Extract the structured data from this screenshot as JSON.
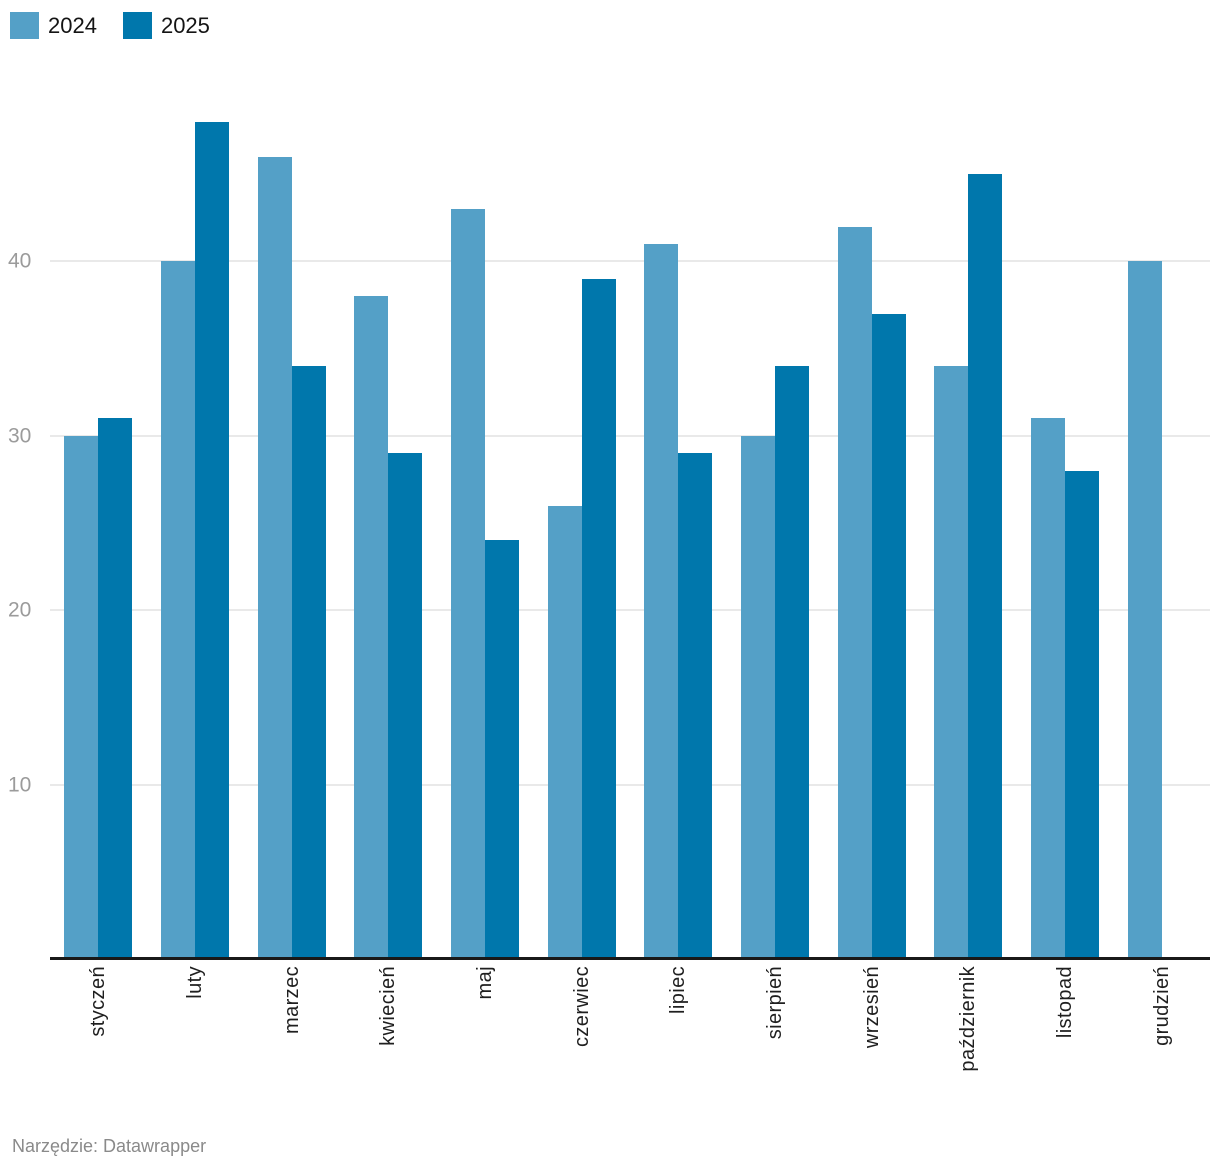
{
  "chart_data": {
    "type": "bar",
    "title": "",
    "xlabel": "",
    "ylabel": "",
    "categories": [
      "styczeń",
      "luty",
      "marzec",
      "kwiecień",
      "maj",
      "czerwiec",
      "lipiec",
      "sierpień",
      "wrzesień",
      "październik",
      "listopad",
      "grudzień"
    ],
    "series": [
      {
        "name": "2024",
        "color": "#54A0C7",
        "values": [
          30,
          40,
          46,
          38,
          43,
          26,
          41,
          30,
          42,
          34,
          31,
          40
        ]
      },
      {
        "name": "2025",
        "color": "#0077AC",
        "values": [
          31,
          48,
          34,
          29,
          24,
          39,
          29,
          34,
          37,
          45,
          28,
          null
        ]
      }
    ],
    "ylim": [
      0,
      50
    ],
    "yticks": [
      10,
      20,
      30,
      40
    ],
    "grid": true,
    "legend_position": "top-left",
    "x_label_rotation": -90
  },
  "colors": {
    "series_2024": "#54A0C7",
    "series_2025": "#0077AC",
    "gridline": "#e9e9e9",
    "axis_line": "#191919",
    "y_tick_text": "#9b9b9b",
    "x_tick_text": "#1f1f1f",
    "footer_text": "#8a8a8a",
    "background": "#ffffff"
  },
  "footer": {
    "text": "Narzędzie: Datawrapper"
  }
}
